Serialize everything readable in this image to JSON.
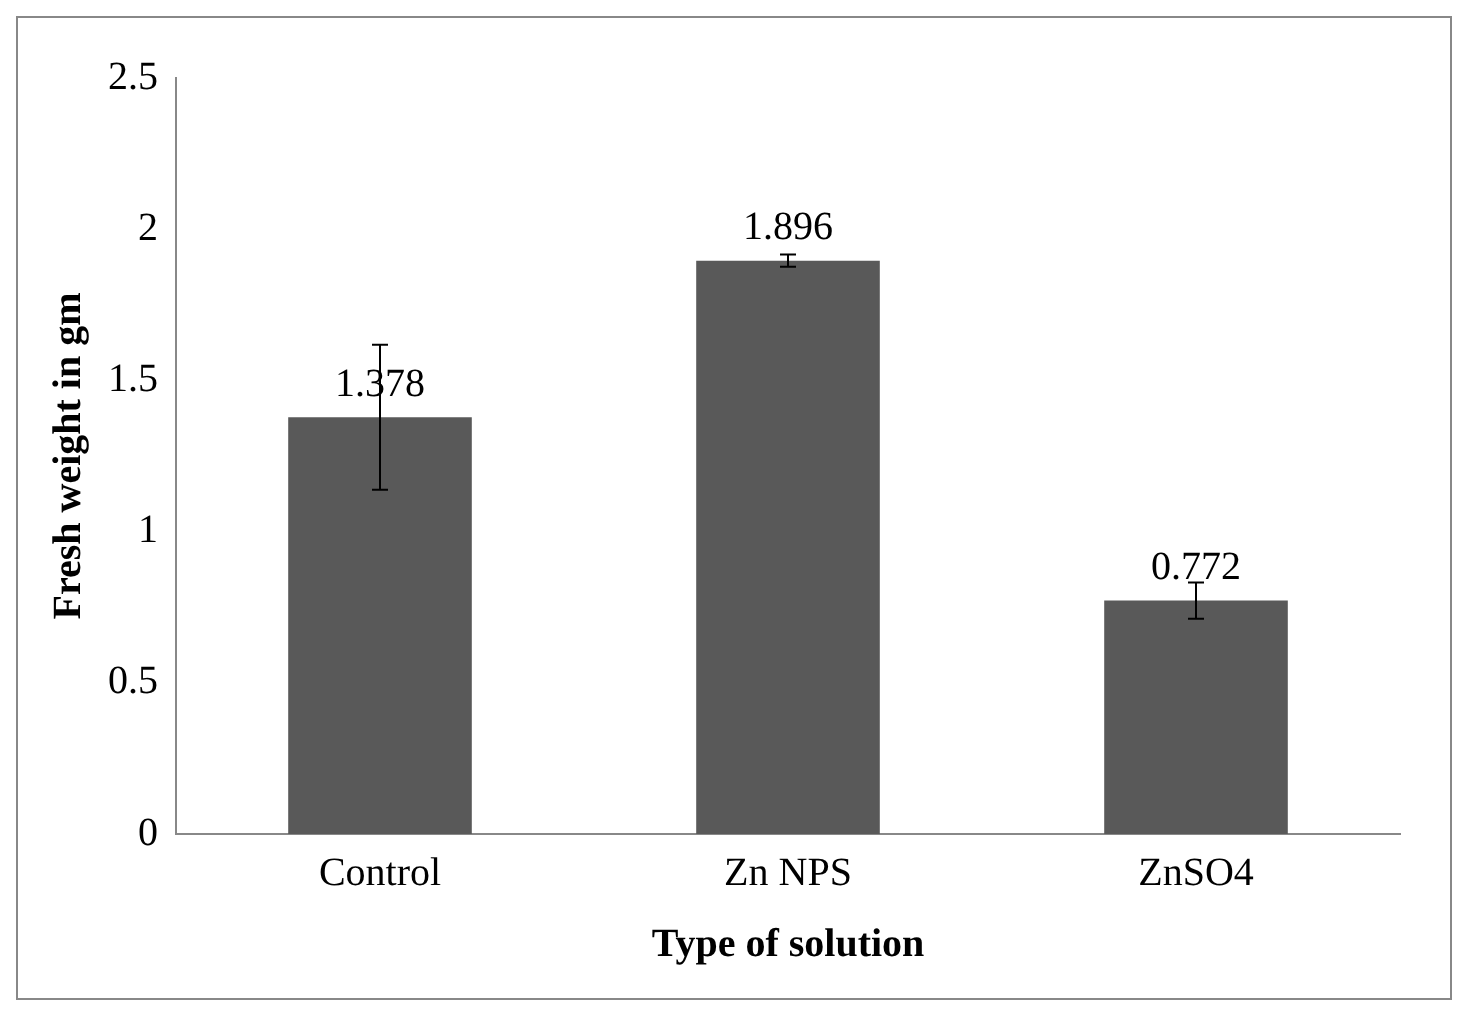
{
  "chart_data": {
    "type": "bar",
    "xlabel": "Type of solution",
    "ylabel": "Fresh weight in gm",
    "categories": [
      "Control",
      "Zn NPS",
      "ZnSO4"
    ],
    "values": [
      1.378,
      1.896,
      0.772
    ],
    "errors": [
      0.24,
      0.02,
      0.06
    ],
    "color": "#595959",
    "data_labels": true,
    "grid": false,
    "legend": false,
    "ylim": [
      0,
      2.5
    ],
    "yticks": [
      0,
      0.5,
      1,
      1.5,
      2,
      2.5
    ]
  }
}
